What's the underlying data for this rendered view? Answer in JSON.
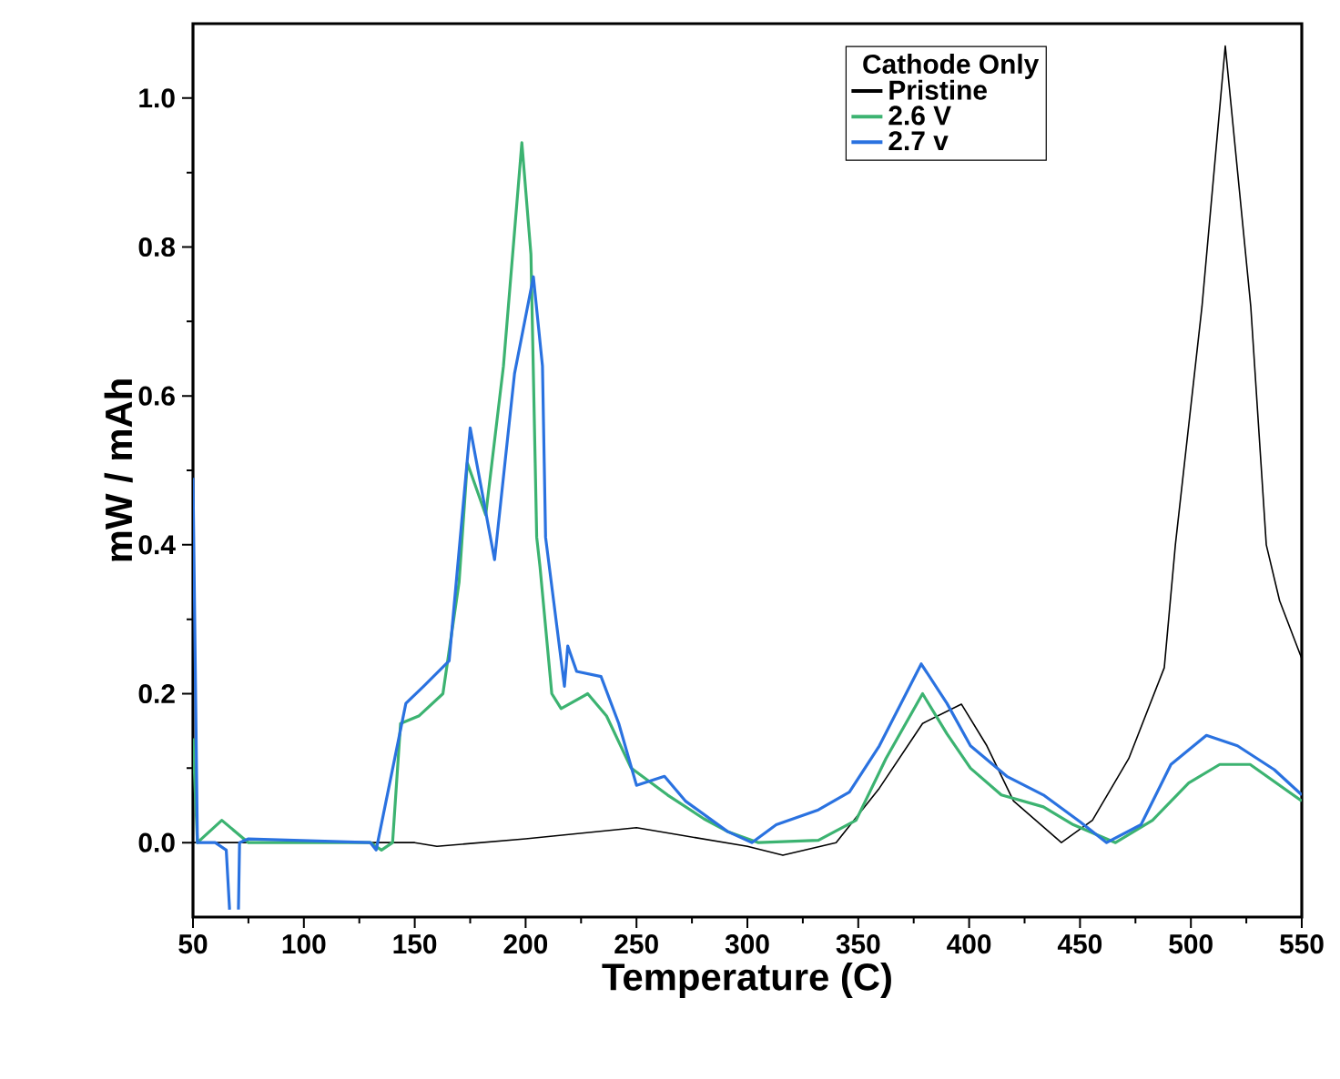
{
  "chart_data": {
    "type": "line",
    "xlabel": "Temperature (C)",
    "ylabel": "mW / mAh",
    "legend_title": "Cathode Only",
    "xlim": [
      50,
      550
    ],
    "ylim": [
      -0.1,
      1.1
    ],
    "xticks": [
      50,
      100,
      150,
      200,
      250,
      300,
      350,
      400,
      450,
      500,
      550
    ],
    "yticks": [
      {
        "value": 0,
        "label": "0.0"
      },
      0.2,
      0.4,
      0.6,
      0.8,
      {
        "value": 1,
        "label": "1.0"
      }
    ],
    "legend": "top right",
    "series": [
      {
        "name": "Pristine",
        "color": "#000000",
        "x": [
          50,
          100,
          150,
          160,
          200,
          250,
          270,
          300,
          316,
          340,
          359.5,
          379,
          396.5,
          408,
          420,
          441.6,
          455.6,
          472,
          488,
          493,
          505,
          515.5,
          527,
          534,
          540,
          550
        ],
        "values": [
          0.0,
          0.0,
          0.0,
          -0.005,
          0.005,
          0.02,
          0.01,
          -0.005,
          -0.017,
          0.0,
          0.073,
          0.16,
          0.186,
          0.13,
          0.056,
          0.0,
          0.03,
          0.113,
          0.235,
          0.4,
          0.72,
          1.07,
          0.72,
          0.4,
          0.325,
          0.247
        ]
      },
      {
        "name": "2.6 V",
        "color": "#3cb371",
        "x": [
          50,
          52,
          63,
          75,
          130,
          135,
          140,
          143.6,
          151.8,
          162.7,
          170,
          173.7,
          182,
          190,
          198.3,
          202.4,
          205,
          206.5,
          211.8,
          216,
          228,
          236.5,
          247.6,
          264,
          280.4,
          291,
          305,
          332,
          349,
          362.5,
          379,
          390,
          400.6,
          414.5,
          433.5,
          447,
          466,
          482.7,
          499,
          513,
          526.7,
          550
        ],
        "values": [
          0.14,
          0.0,
          0.03,
          0.0,
          0.0,
          -0.01,
          0.0,
          0.16,
          0.17,
          0.2,
          0.35,
          0.51,
          0.44,
          0.64,
          0.94,
          0.79,
          0.41,
          0.37,
          0.2,
          0.18,
          0.2,
          0.17,
          0.1,
          0.064,
          0.032,
          0.015,
          0.0,
          0.003,
          0.03,
          0.113,
          0.2,
          0.146,
          0.1,
          0.064,
          0.048,
          0.024,
          0.0,
          0.03,
          0.08,
          0.105,
          0.105,
          0.056
        ]
      },
      {
        "name": "2.7 v",
        "color": "#2a72e0",
        "x": [
          50,
          52,
          60,
          65,
          66.5,
          68,
          70.5,
          71,
          75,
          130,
          132.6,
          146,
          154,
          165.5,
          175,
          186,
          195,
          203.5,
          207.6,
          209,
          217.5,
          219,
          223,
          234,
          242,
          250,
          262.6,
          272,
          291,
          302,
          313,
          332,
          346,
          359.5,
          378.4,
          390,
          400.6,
          417,
          433.5,
          450,
          462,
          477.5,
          491,
          507,
          521,
          537.6,
          550
        ],
        "values": [
          0.49,
          0.0,
          0.0,
          -0.01,
          -0.09,
          null,
          -0.09,
          0.0,
          0.005,
          0.0,
          -0.01,
          0.187,
          0.21,
          0.244,
          0.557,
          0.38,
          0.63,
          0.76,
          0.64,
          0.41,
          0.21,
          0.264,
          0.23,
          0.223,
          0.16,
          0.077,
          0.089,
          0.056,
          0.015,
          0.0,
          0.024,
          0.044,
          0.068,
          0.13,
          0.24,
          0.187,
          0.13,
          0.089,
          0.064,
          0.028,
          0.0,
          0.024,
          0.105,
          0.144,
          0.13,
          0.098,
          0.064
        ]
      }
    ]
  }
}
